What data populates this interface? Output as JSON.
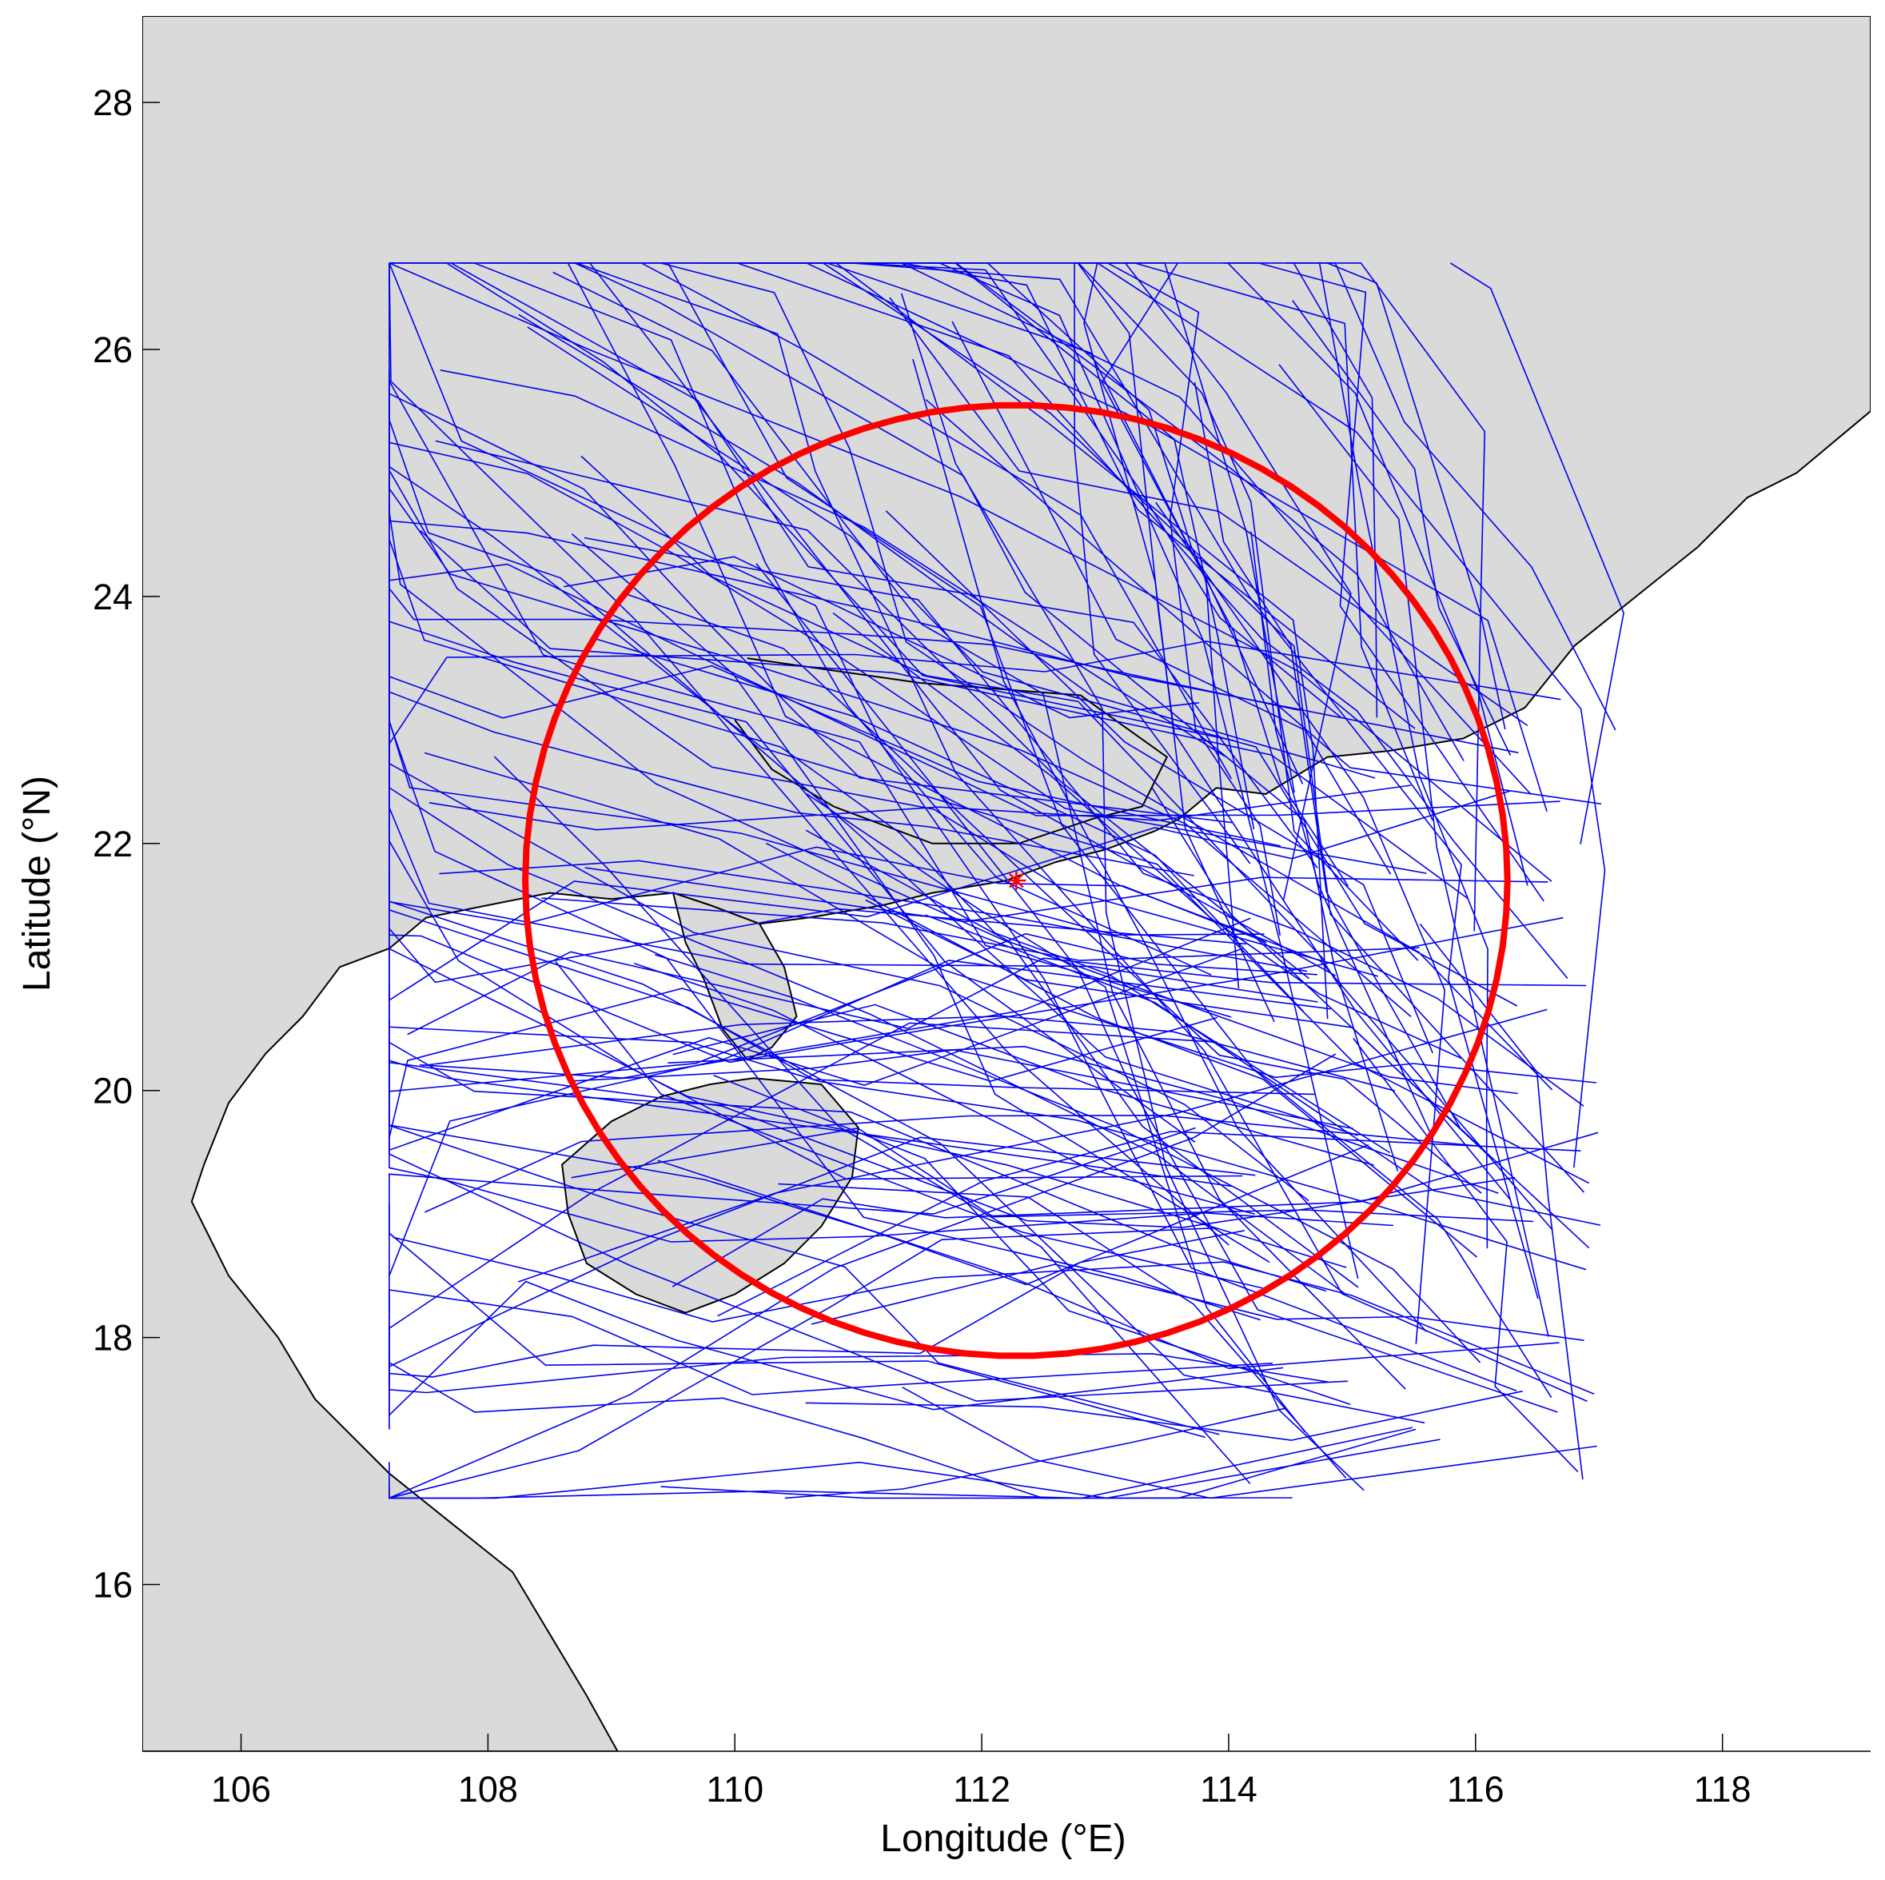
{
  "chart_data": {
    "type": "map",
    "xlabel": "Longitude (°E)",
    "ylabel": "Latitude (°N)",
    "xlim": [
      105.2,
      119.2
    ],
    "ylim": [
      14.65,
      28.7
    ],
    "x_ticks": [
      106,
      108,
      110,
      112,
      114,
      116,
      118
    ],
    "y_ticks": [
      16,
      18,
      20,
      22,
      24,
      26,
      28
    ],
    "x_tick_labels": [
      "106",
      "108",
      "110",
      "112",
      "114",
      "116",
      "118"
    ],
    "y_tick_labels": [
      "16",
      "18",
      "20",
      "22",
      "24",
      "26",
      "28"
    ],
    "grid": false,
    "colors": {
      "land": "#dadada",
      "sea": "#ffffff",
      "coastline": "#000000",
      "tracks": "#0000ee",
      "circle": "#ff0000",
      "center_marker": "#ff0000"
    },
    "center_marker": {
      "lon": 112.28,
      "lat": 21.7,
      "symbol": "asterisk"
    },
    "circle": {
      "center_lon": 112.28,
      "center_lat": 21.7,
      "radius_deg_lat": 3.85,
      "line_width": "thick"
    },
    "coastline_mainland": [
      [
        105.2,
        28.7
      ],
      [
        119.2,
        28.7
      ],
      [
        119.2,
        25.5
      ],
      [
        118.6,
        25.0
      ],
      [
        118.2,
        24.8
      ],
      [
        117.8,
        24.4
      ],
      [
        117.3,
        24.0
      ],
      [
        116.8,
        23.6
      ],
      [
        116.4,
        23.1
      ],
      [
        115.9,
        22.85
      ],
      [
        115.3,
        22.75
      ],
      [
        114.8,
        22.7
      ],
      [
        114.3,
        22.4
      ],
      [
        113.9,
        22.45
      ],
      [
        113.6,
        22.2
      ],
      [
        113.4,
        22.1
      ],
      [
        113.0,
        21.95
      ],
      [
        112.6,
        21.85
      ],
      [
        112.2,
        21.7
      ],
      [
        111.6,
        21.6
      ],
      [
        111.2,
        21.5
      ],
      [
        110.6,
        21.4
      ],
      [
        110.2,
        21.35
      ],
      [
        109.8,
        21.5
      ],
      [
        109.5,
        21.6
      ],
      [
        109.0,
        21.55
      ],
      [
        108.5,
        21.6
      ],
      [
        108.0,
        21.5
      ],
      [
        107.5,
        21.4
      ],
      [
        107.2,
        21.15
      ],
      [
        106.8,
        21.0
      ],
      [
        106.5,
        20.6
      ],
      [
        106.2,
        20.3
      ],
      [
        105.9,
        19.9
      ],
      [
        105.7,
        19.4
      ],
      [
        105.6,
        19.1
      ],
      [
        105.9,
        18.5
      ],
      [
        106.3,
        18.0
      ],
      [
        106.6,
        17.5
      ],
      [
        107.2,
        16.9
      ],
      [
        107.7,
        16.5
      ],
      [
        108.2,
        16.1
      ],
      [
        108.5,
        15.6
      ],
      [
        108.8,
        15.1
      ],
      [
        109.05,
        14.65
      ],
      [
        105.2,
        14.65
      ]
    ],
    "leizhou_peninsula": [
      [
        109.5,
        21.6
      ],
      [
        109.8,
        21.5
      ],
      [
        110.2,
        21.35
      ],
      [
        110.4,
        21.0
      ],
      [
        110.5,
        20.6
      ],
      [
        110.3,
        20.35
      ],
      [
        110.1,
        20.25
      ],
      [
        109.9,
        20.5
      ],
      [
        109.75,
        20.9
      ],
      [
        109.6,
        21.2
      ]
    ],
    "hainan_island": [
      [
        110.15,
        20.1
      ],
      [
        110.7,
        20.05
      ],
      [
        111.0,
        19.7
      ],
      [
        110.95,
        19.3
      ],
      [
        110.7,
        18.9
      ],
      [
        110.4,
        18.6
      ],
      [
        110.0,
        18.35
      ],
      [
        109.6,
        18.2
      ],
      [
        109.2,
        18.35
      ],
      [
        108.8,
        18.6
      ],
      [
        108.65,
        19.0
      ],
      [
        108.6,
        19.4
      ],
      [
        109.0,
        19.75
      ],
      [
        109.4,
        19.95
      ],
      [
        109.8,
        20.05
      ]
    ],
    "pearl_river_delta_inland": [
      [
        110.1,
        23.5
      ],
      [
        111.5,
        23.3
      ],
      [
        112.8,
        23.2
      ],
      [
        113.5,
        22.7
      ],
      [
        113.3,
        22.3
      ],
      [
        112.9,
        22.2
      ],
      [
        112.3,
        22.0
      ],
      [
        111.6,
        22.0
      ],
      [
        110.8,
        22.3
      ],
      [
        110.3,
        22.6
      ],
      [
        110.0,
        23.0
      ]
    ],
    "track_region": {
      "lon_min": 107.2,
      "lon_max": 117.2,
      "lat_min": 16.7,
      "lat_max": 26.7
    },
    "track_count": 160,
    "track_seed": 20251,
    "track_style": "thin"
  }
}
